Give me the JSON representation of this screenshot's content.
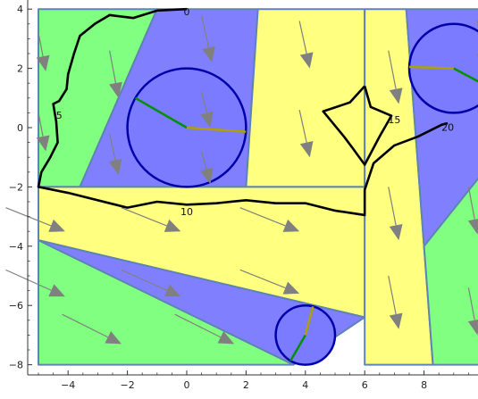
{
  "chart_data": {
    "type": "diagram",
    "axes": {
      "xlim": [
        -6.2,
        10.0
      ],
      "ylim": [
        -8.5,
        4.2
      ],
      "x_ticks": [
        -4,
        -2,
        0,
        2,
        4,
        6,
        8
      ],
      "y_ticks": [
        4,
        2,
        0,
        -2,
        -4,
        -6,
        -8
      ]
    },
    "colors": {
      "green": "#80ff80",
      "blue": "#8080ff",
      "yellow": "#ffff80",
      "region_edge": "#5f83b5",
      "circle_fill": "#7b7bff",
      "circle_edge": "#0000aa",
      "arrow": "#808080",
      "path": "#000000",
      "radius_green": "#009000",
      "radius_gold": "#b0a000"
    },
    "regions": [
      {
        "fill": "green",
        "points": [
          [
            -5,
            4
          ],
          [
            -1,
            4
          ],
          [
            -3.6,
            -2
          ],
          [
            -5,
            -2
          ]
        ]
      },
      {
        "fill": "blue",
        "points": [
          [
            -1,
            4
          ],
          [
            2.4,
            4
          ],
          [
            2,
            -2
          ],
          [
            -3.6,
            -2
          ]
        ]
      },
      {
        "fill": "yellow",
        "points": [
          [
            2.4,
            4
          ],
          [
            6,
            4
          ],
          [
            6,
            -2
          ],
          [
            2,
            -2
          ]
        ]
      },
      {
        "fill": "yellow",
        "points": [
          [
            -5,
            -2
          ],
          [
            6,
            -2
          ],
          [
            6,
            -6.4
          ],
          [
            -5,
            -3.8
          ]
        ]
      },
      {
        "fill": "green",
        "points": [
          [
            -5,
            -3.8
          ],
          [
            3.6,
            -8
          ],
          [
            -5,
            -8
          ]
        ]
      },
      {
        "fill": "blue",
        "points": [
          [
            -5,
            -3.8
          ],
          [
            6,
            -6.4
          ],
          [
            3.6,
            -8
          ]
        ]
      },
      {
        "fill": "yellow",
        "points": [
          [
            6,
            4
          ],
          [
            7.4,
            4
          ],
          [
            8.3,
            -8
          ],
          [
            6,
            -8
          ]
        ]
      },
      {
        "fill": "blue",
        "points": [
          [
            7.4,
            4
          ],
          [
            10,
            4
          ],
          [
            10,
            -1.5
          ],
          [
            8,
            -4
          ]
        ]
      },
      {
        "fill": "green",
        "points": [
          [
            10,
            -1.5
          ],
          [
            10,
            -8
          ],
          [
            8.3,
            -8
          ],
          [
            8,
            -4
          ]
        ]
      }
    ],
    "circles": [
      {
        "cx": 0,
        "cy": 0,
        "r": 2,
        "radius_angles_deg": [
          150,
          -4
        ]
      },
      {
        "cx": 9,
        "cy": 2,
        "r": 1.5,
        "radius_angles_deg": [
          -28,
          178
        ]
      },
      {
        "cx": 4,
        "cy": -7,
        "r": 1,
        "radius_angles_deg": [
          -120,
          75
        ]
      }
    ],
    "arrows": [
      {
        "x": -5,
        "y": 3.2,
        "dx": 0.25,
        "dy": -1.3
      },
      {
        "x": -5,
        "y": 0.5,
        "dx": 0.25,
        "dy": -1.3
      },
      {
        "x": -2.6,
        "y": 2.6,
        "dx": 0.3,
        "dy": -1.6
      },
      {
        "x": -2.6,
        "y": -0.2,
        "dx": 0.3,
        "dy": -1.4
      },
      {
        "x": 0.5,
        "y": 3.8,
        "dx": 0.35,
        "dy": -1.6
      },
      {
        "x": 0.5,
        "y": 1.2,
        "dx": 0.3,
        "dy": -1.2
      },
      {
        "x": 0.5,
        "y": -0.8,
        "dx": 0.3,
        "dy": -1.1
      },
      {
        "x": 3.8,
        "y": 3.6,
        "dx": 0.35,
        "dy": -1.6
      },
      {
        "x": 3.8,
        "y": 0.6,
        "dx": 0.35,
        "dy": -1.6
      },
      {
        "x": 6.8,
        "y": 2.6,
        "dx": 0.35,
        "dy": -1.8
      },
      {
        "x": 6.8,
        "y": -2.0,
        "dx": 0.35,
        "dy": -1.8
      },
      {
        "x": 6.8,
        "y": -5.0,
        "dx": 0.35,
        "dy": -1.8
      },
      {
        "x": 9.8,
        "y": 3.6,
        "dx": 0.3,
        "dy": -1.6
      },
      {
        "x": 9.5,
        "y": -2.0,
        "dx": 0.3,
        "dy": -1.6
      },
      {
        "x": 9.5,
        "y": -5.4,
        "dx": 0.3,
        "dy": -1.6
      },
      {
        "x": -6.1,
        "y": -2.7,
        "dx": 2.0,
        "dy": -0.8
      },
      {
        "x": -2.2,
        "y": -2.7,
        "dx": 2.0,
        "dy": -0.8
      },
      {
        "x": 1.8,
        "y": -2.7,
        "dx": 2.0,
        "dy": -0.8
      },
      {
        "x": -6.1,
        "y": -4.8,
        "dx": 2.0,
        "dy": -0.9
      },
      {
        "x": -2.2,
        "y": -4.8,
        "dx": 2.0,
        "dy": -0.9
      },
      {
        "x": 1.8,
        "y": -4.8,
        "dx": 2.0,
        "dy": -0.8
      },
      {
        "x": -4.2,
        "y": -6.3,
        "dx": 2.0,
        "dy": -1.0
      },
      {
        "x": -0.4,
        "y": -6.3,
        "dx": 2.0,
        "dy": -1.0
      }
    ],
    "path": [
      [
        0,
        4
      ],
      [
        -1,
        3.95
      ],
      [
        -1.8,
        3.7
      ],
      [
        -2.6,
        3.8
      ],
      [
        -3.1,
        3.5
      ],
      [
        -3.6,
        3.1
      ],
      [
        -3.8,
        2.5
      ],
      [
        -4.0,
        1.8
      ],
      [
        -4.05,
        1.3
      ],
      [
        -4.3,
        0.9
      ],
      [
        -4.5,
        0.8
      ],
      [
        -4.4,
        0.2
      ],
      [
        -4.35,
        -0.5
      ],
      [
        -4.6,
        -1.0
      ],
      [
        -4.9,
        -1.5
      ],
      [
        -5.0,
        -2.0
      ],
      [
        -4.0,
        -2.2
      ],
      [
        -2.0,
        -2.7
      ],
      [
        -1.0,
        -2.5
      ],
      [
        0,
        -2.6
      ],
      [
        1.0,
        -2.55
      ],
      [
        2.0,
        -2.45
      ],
      [
        3.0,
        -2.55
      ],
      [
        4.0,
        -2.55
      ],
      [
        5.0,
        -2.8
      ],
      [
        6.0,
        -2.95
      ],
      [
        6.0,
        -2.1
      ],
      [
        6.3,
        -1.2
      ],
      [
        7.0,
        -0.6
      ],
      [
        7.8,
        -0.3
      ],
      [
        8.6,
        0.1
      ],
      [
        8.8,
        0.15
      ]
    ],
    "star": [
      [
        6.0,
        1.4
      ],
      [
        6.2,
        0.7
      ],
      [
        6.9,
        0.4
      ],
      [
        6.5,
        -0.3
      ],
      [
        6.0,
        -1.25
      ],
      [
        5.6,
        -0.7
      ],
      [
        5.3,
        -0.3
      ],
      [
        4.6,
        0.55
      ],
      [
        5.5,
        0.85
      ],
      [
        6.0,
        1.4
      ]
    ],
    "path_labels": [
      {
        "text": "0",
        "x": 0.0,
        "y": 3.8
      },
      {
        "text": "5",
        "x": -4.3,
        "y": 0.3
      },
      {
        "text": "10",
        "x": 0.0,
        "y": -2.95
      },
      {
        "text": "15",
        "x": 7.0,
        "y": 0.15
      },
      {
        "text": "20",
        "x": 8.8,
        "y": -0.1
      }
    ]
  }
}
